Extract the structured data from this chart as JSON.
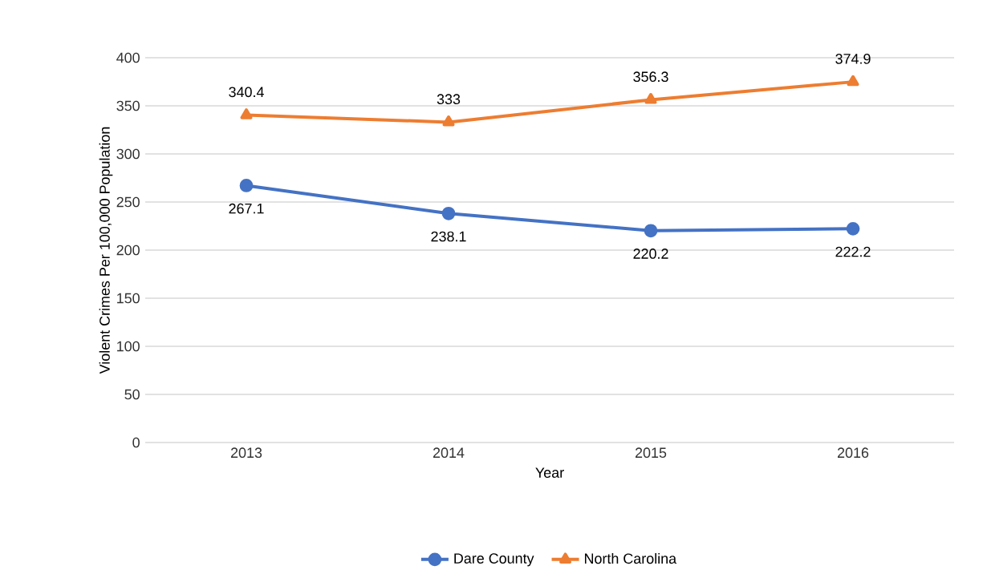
{
  "chart_data": {
    "type": "line",
    "xlabel": "Year",
    "ylabel": "Violent Crimes Per 100,000 Population",
    "categories": [
      "2013",
      "2014",
      "2015",
      "2016"
    ],
    "series": [
      {
        "name": "Dare County",
        "color": "#4472c4",
        "marker": "circle",
        "values": [
          267.1,
          238.1,
          220.2,
          222.2
        ]
      },
      {
        "name": "North Carolina",
        "color": "#ed7d31",
        "marker": "triangle",
        "values": [
          340.4,
          333,
          356.3,
          374.9
        ]
      }
    ],
    "ylim": [
      0,
      400
    ],
    "yticks": [
      0,
      50,
      100,
      150,
      200,
      250,
      300,
      350,
      400
    ],
    "grid": "y",
    "legend": "bottom",
    "data_labels": true,
    "line_style": "solid"
  }
}
